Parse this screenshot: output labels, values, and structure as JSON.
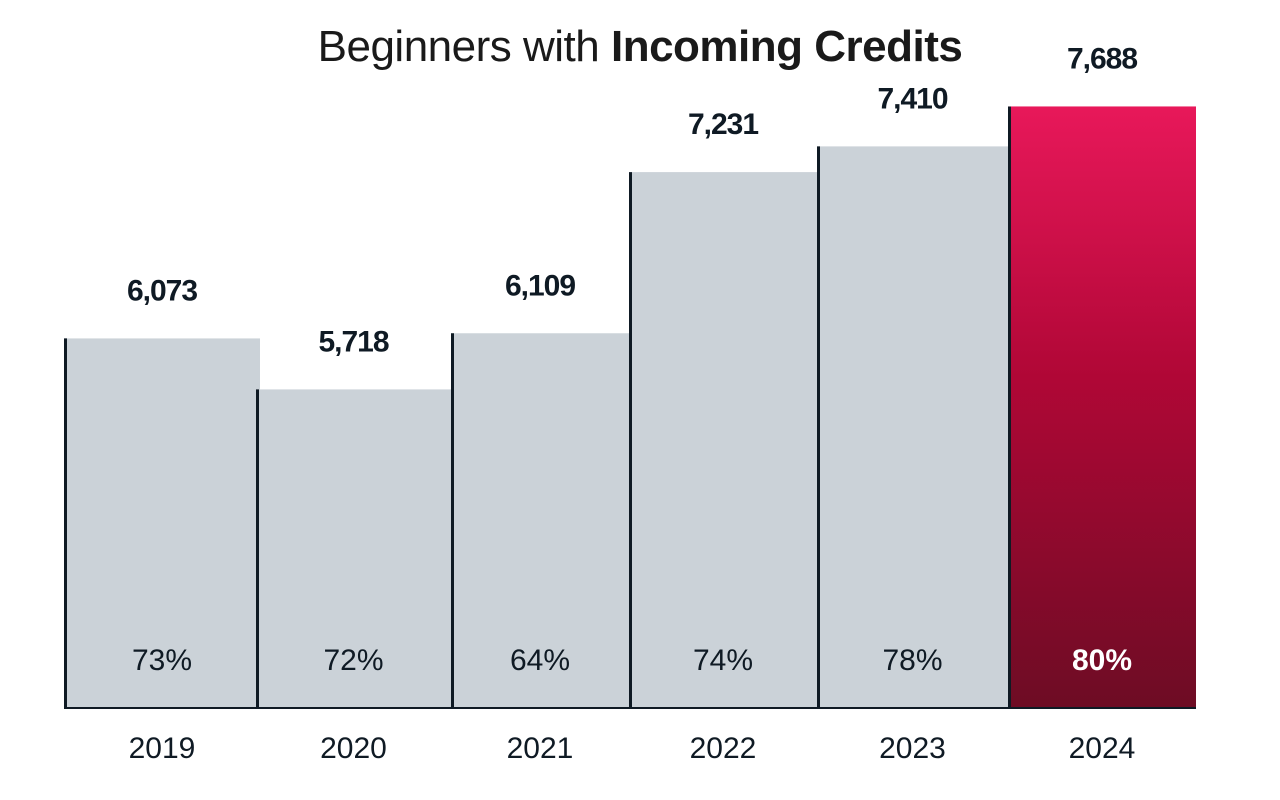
{
  "chart_data": {
    "type": "bar",
    "title_prefix": "Beginners with",
    "title_bold": "Incoming Credits",
    "categories": [
      "2019",
      "2020",
      "2021",
      "2022",
      "2023",
      "2024"
    ],
    "values": [
      6073,
      5718,
      6109,
      7231,
      7410,
      7688
    ],
    "value_labels": [
      "6,073",
      "5,718",
      "6,109",
      "7,231",
      "7,410",
      "7,688"
    ],
    "percent_labels": [
      "73%",
      "72%",
      "64%",
      "74%",
      "78%",
      "80%"
    ],
    "percents": [
      73,
      72,
      64,
      74,
      78,
      80
    ],
    "highlight_index": 5,
    "colors": {
      "bar": "#cbd2d8",
      "bar_edge": "#0f1a24",
      "highlight_top": "#e8185a",
      "highlight_mid": "#b00736",
      "highlight_bottom": "#6d0c24",
      "text_dark": "#0f1a24",
      "text_light": "#ffffff"
    },
    "xlabel": "",
    "ylabel": "",
    "ylim": [
      3500,
      7900
    ],
    "grid": false,
    "legend": "none"
  }
}
